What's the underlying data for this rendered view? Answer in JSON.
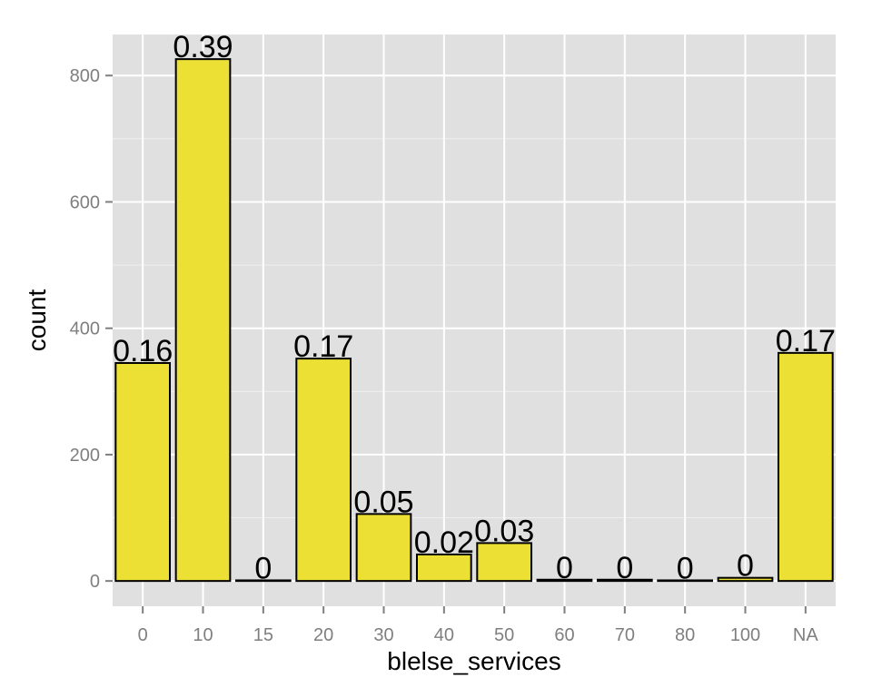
{
  "chart_data": {
    "type": "bar",
    "categories": [
      "0",
      "10",
      "15",
      "20",
      "30",
      "40",
      "50",
      "60",
      "70",
      "80",
      "100",
      "NA"
    ],
    "values": [
      345,
      826,
      1,
      352,
      106,
      42,
      60,
      2,
      2,
      1,
      5,
      361
    ],
    "bar_labels": [
      "0.16",
      "0.39",
      "0",
      "0.17",
      "0.05",
      "0.02",
      "0.03",
      "0",
      "0",
      "0",
      "0",
      "0.17"
    ],
    "xlabel": "blelse_services",
    "ylabel": "count",
    "ylim": [
      -40,
      865
    ],
    "yticks": [
      0,
      200,
      400,
      600,
      800
    ],
    "grid": true,
    "legend": "none"
  },
  "colors": {
    "panel_background": "#e0e0e0",
    "grid_major": "#ffffff",
    "grid_minor": "#efefef",
    "bar_fill": "#ebe033",
    "bar_outline": "#000000",
    "tick_text": "#7f7f7f"
  }
}
